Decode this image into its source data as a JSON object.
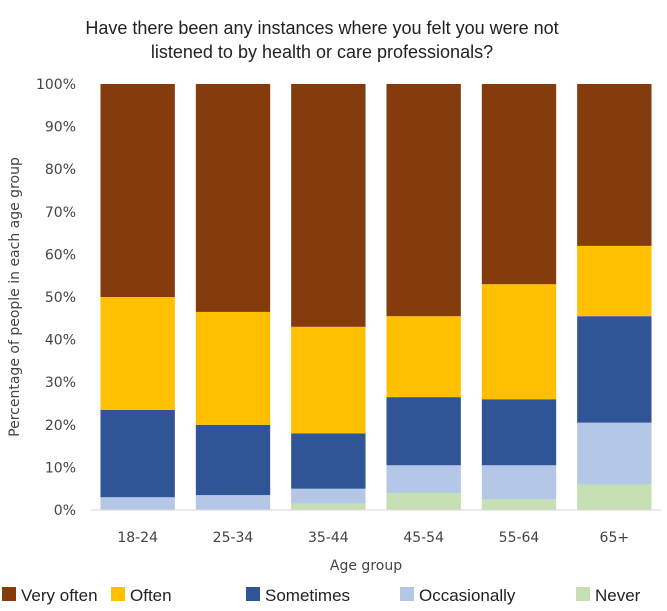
{
  "chart_data": {
    "type": "bar",
    "stacked": true,
    "title_lines": [
      "Have there been any instances where you felt you were not",
      "listened to by health or care professionals?"
    ],
    "xlabel": "Age group",
    "ylabel": "Percentage of people in each age group",
    "ylim": [
      0,
      100
    ],
    "yticks": [
      "0%",
      "10%",
      "20%",
      "30%",
      "40%",
      "50%",
      "60%",
      "70%",
      "80%",
      "90%",
      "100%"
    ],
    "categories": [
      "18-24",
      "25-34",
      "35-44",
      "45-54",
      "55-64",
      "65+"
    ],
    "series": [
      {
        "name": "Never",
        "color": "#c6e0b4",
        "values": [
          0,
          0,
          1.5,
          4,
          2.5,
          6
        ]
      },
      {
        "name": "Occasionally",
        "color": "#b4c7e7",
        "values": [
          3,
          3.5,
          3.5,
          6.5,
          8,
          14.5
        ]
      },
      {
        "name": "Sometimes",
        "color": "#2f5597",
        "values": [
          20.5,
          16.5,
          13,
          16,
          15.5,
          25
        ]
      },
      {
        "name": "Often",
        "color": "#ffc000",
        "values": [
          26.5,
          26.5,
          25,
          19,
          27,
          16.5
        ]
      },
      {
        "name": "Very often",
        "color": "#843c0c",
        "values": [
          50,
          53.5,
          57,
          54.5,
          47,
          38
        ]
      }
    ],
    "legend": {
      "position": "bottom",
      "order": [
        "Very often",
        "Often",
        "Sometimes",
        "Occasionally",
        "Never"
      ]
    },
    "grid": false
  }
}
